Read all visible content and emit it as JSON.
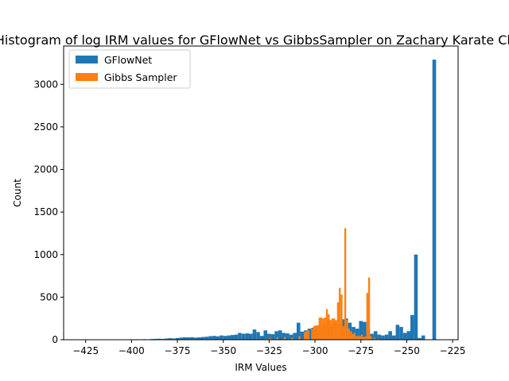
{
  "chart_data": {
    "type": "bar",
    "title": "Histogram of log IRM values for GFlowNet vs GibbsSampler on Zachary Karate Club",
    "xlabel": "IRM Values",
    "ylabel": "Count",
    "xlim": [
      -437,
      -222
    ],
    "ylim": [
      0,
      3450
    ],
    "xticks": [
      -425,
      -400,
      -375,
      -350,
      -325,
      -300,
      -275,
      -250,
      -225
    ],
    "xtick_labels": [
      "−425",
      "−400",
      "−375",
      "−350",
      "−325",
      "−300",
      "−275",
      "−250",
      "−225"
    ],
    "yticks": [
      0,
      500,
      1000,
      1500,
      2000,
      2500,
      3000
    ],
    "ytick_labels": [
      "0",
      "500",
      "1000",
      "1500",
      "2000",
      "2500",
      "3000"
    ],
    "legend_position": "upper-left",
    "series": [
      {
        "name": "GFlowNet",
        "color": "#1f77b4",
        "bin_width": 2.0,
        "bins": [
          {
            "x": -429,
            "count": 1
          },
          {
            "x": -427,
            "count": 1
          },
          {
            "x": -425,
            "count": 1
          },
          {
            "x": -421,
            "count": 1
          },
          {
            "x": -417,
            "count": 2
          },
          {
            "x": -413,
            "count": 2
          },
          {
            "x": -409,
            "count": 3
          },
          {
            "x": -405,
            "count": 3
          },
          {
            "x": -401,
            "count": 4
          },
          {
            "x": -397,
            "count": 5
          },
          {
            "x": -393,
            "count": 6
          },
          {
            "x": -389,
            "count": 8
          },
          {
            "x": -387,
            "count": 10
          },
          {
            "x": -385,
            "count": 12
          },
          {
            "x": -383,
            "count": 10
          },
          {
            "x": -381,
            "count": 14
          },
          {
            "x": -379,
            "count": 18
          },
          {
            "x": -377,
            "count": 15
          },
          {
            "x": -375,
            "count": 20
          },
          {
            "x": -373,
            "count": 25
          },
          {
            "x": -371,
            "count": 28
          },
          {
            "x": -369,
            "count": 28
          },
          {
            "x": -367,
            "count": 30
          },
          {
            "x": -365,
            "count": 25
          },
          {
            "x": -363,
            "count": 28
          },
          {
            "x": -361,
            "count": 32
          },
          {
            "x": -359,
            "count": 35
          },
          {
            "x": -357,
            "count": 42
          },
          {
            "x": -355,
            "count": 45
          },
          {
            "x": -353,
            "count": 40
          },
          {
            "x": -351,
            "count": 50
          },
          {
            "x": -349,
            "count": 45
          },
          {
            "x": -347,
            "count": 50
          },
          {
            "x": -345,
            "count": 55
          },
          {
            "x": -343,
            "count": 60
          },
          {
            "x": -341,
            "count": 80
          },
          {
            "x": -339,
            "count": 70
          },
          {
            "x": -337,
            "count": 75
          },
          {
            "x": -335,
            "count": 70
          },
          {
            "x": -333,
            "count": 120
          },
          {
            "x": -331,
            "count": 90
          },
          {
            "x": -329,
            "count": 45
          },
          {
            "x": -327,
            "count": 110
          },
          {
            "x": -325,
            "count": 70
          },
          {
            "x": -323,
            "count": 65
          },
          {
            "x": -321,
            "count": 100
          },
          {
            "x": -319,
            "count": 110
          },
          {
            "x": -317,
            "count": 80
          },
          {
            "x": -315,
            "count": 75
          },
          {
            "x": -313,
            "count": 60
          },
          {
            "x": -311,
            "count": 80
          },
          {
            "x": -309,
            "count": 200
          },
          {
            "x": -307,
            "count": 95
          },
          {
            "x": -305,
            "count": 110
          },
          {
            "x": -303,
            "count": 130
          },
          {
            "x": -301,
            "count": 140
          },
          {
            "x": -299,
            "count": 150
          },
          {
            "x": -297,
            "count": 175
          },
          {
            "x": -295,
            "count": 180
          },
          {
            "x": -293,
            "count": 230
          },
          {
            "x": -291,
            "count": 160
          },
          {
            "x": -289,
            "count": 200
          },
          {
            "x": -287,
            "count": 190
          },
          {
            "x": -285,
            "count": 240
          },
          {
            "x": -283,
            "count": 250
          },
          {
            "x": -281,
            "count": 200
          },
          {
            "x": -279,
            "count": 150
          },
          {
            "x": -277,
            "count": 130
          },
          {
            "x": -275,
            "count": 220
          },
          {
            "x": -273,
            "count": 210
          },
          {
            "x": -271,
            "count": 130
          },
          {
            "x": -269,
            "count": 70
          },
          {
            "x": -267,
            "count": 100
          },
          {
            "x": -265,
            "count": 60
          },
          {
            "x": -263,
            "count": 50
          },
          {
            "x": -261,
            "count": 60
          },
          {
            "x": -259,
            "count": 100
          },
          {
            "x": -257,
            "count": 50
          },
          {
            "x": -255,
            "count": 175
          },
          {
            "x": -253,
            "count": 150
          },
          {
            "x": -251,
            "count": 80
          },
          {
            "x": -249,
            "count": 100
          },
          {
            "x": -247,
            "count": 290
          },
          {
            "x": -245,
            "count": 1000
          },
          {
            "x": -243,
            "count": 20
          },
          {
            "x": -241,
            "count": 50
          },
          {
            "x": -235,
            "count": 3290
          }
        ]
      },
      {
        "name": "Gibbs Sampler",
        "color": "#ff7f0e",
        "bin_width": 1.0,
        "bins": [
          {
            "x": -326.5,
            "count": 10
          },
          {
            "x": -324.5,
            "count": 20
          },
          {
            "x": -320.5,
            "count": 25
          },
          {
            "x": -316.5,
            "count": 30
          },
          {
            "x": -312.5,
            "count": 20
          },
          {
            "x": -308.5,
            "count": 40
          },
          {
            "x": -305.5,
            "count": 90
          },
          {
            "x": -304.5,
            "count": 100
          },
          {
            "x": -303.5,
            "count": 110
          },
          {
            "x": -301.5,
            "count": 130
          },
          {
            "x": -300.5,
            "count": 160
          },
          {
            "x": -299.5,
            "count": 170
          },
          {
            "x": -298.5,
            "count": 170
          },
          {
            "x": -297.5,
            "count": 260
          },
          {
            "x": -296.5,
            "count": 260
          },
          {
            "x": -295.5,
            "count": 250
          },
          {
            "x": -294.5,
            "count": 260
          },
          {
            "x": -293.5,
            "count": 360
          },
          {
            "x": -292.5,
            "count": 300
          },
          {
            "x": -291.5,
            "count": 230
          },
          {
            "x": -290.5,
            "count": 250
          },
          {
            "x": -289.5,
            "count": 250
          },
          {
            "x": -288.5,
            "count": 230
          },
          {
            "x": -287.5,
            "count": 440
          },
          {
            "x": -286.5,
            "count": 610
          },
          {
            "x": -285.5,
            "count": 530
          },
          {
            "x": -284.5,
            "count": 160
          },
          {
            "x": -283.5,
            "count": 1310
          },
          {
            "x": -282.5,
            "count": 230
          },
          {
            "x": -281.5,
            "count": 130
          },
          {
            "x": -280.5,
            "count": 100
          },
          {
            "x": -279.5,
            "count": 70
          },
          {
            "x": -278.5,
            "count": 80
          },
          {
            "x": -277.5,
            "count": 40
          },
          {
            "x": -276.5,
            "count": 50
          },
          {
            "x": -275.5,
            "count": 40
          },
          {
            "x": -274.5,
            "count": 60
          },
          {
            "x": -273.5,
            "count": 30
          },
          {
            "x": -272.5,
            "count": 40
          },
          {
            "x": -271.5,
            "count": 550
          },
          {
            "x": -270.5,
            "count": 730
          },
          {
            "x": -269.5,
            "count": 40
          },
          {
            "x": -267.5,
            "count": 20
          },
          {
            "x": -265.5,
            "count": 10
          }
        ]
      }
    ]
  }
}
